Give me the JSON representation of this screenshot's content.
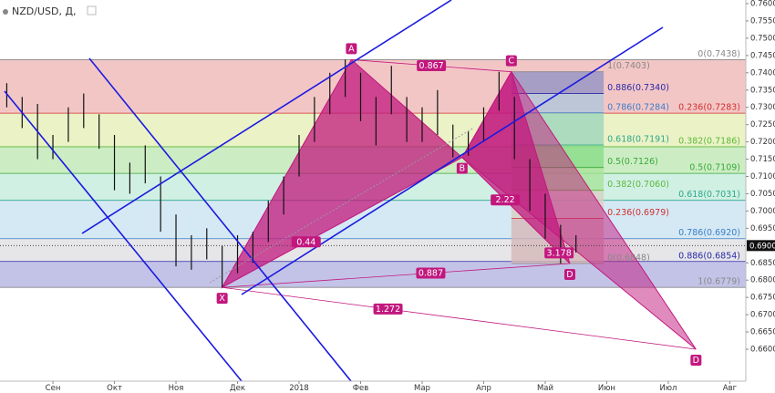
{
  "header": {
    "symbol": "NZD/USD, Д,"
  },
  "chart_data": {
    "type": "ohlc",
    "xlim": [
      -0.86,
      11.26
    ],
    "ylim": [
      0.65077,
      0.76106
    ],
    "xticks": [
      {
        "value": 0,
        "label": "Сен"
      },
      {
        "value": 1,
        "label": "Окт"
      },
      {
        "value": 2,
        "label": "Ноя"
      },
      {
        "value": 3,
        "label": "Дек"
      },
      {
        "value": 4,
        "label": "2018"
      },
      {
        "value": 5,
        "label": "Фев"
      },
      {
        "value": 6,
        "label": "Мар"
      },
      {
        "value": 7,
        "label": "Апр"
      },
      {
        "value": 8,
        "label": "Май"
      },
      {
        "value": 9,
        "label": "Июн"
      },
      {
        "value": 10,
        "label": "Июл"
      },
      {
        "value": 11,
        "label": "Авг"
      }
    ],
    "yticks": [
      {
        "value": 0.66,
        "label": "0.6600"
      },
      {
        "value": 0.665,
        "label": "0.6650"
      },
      {
        "value": 0.67,
        "label": "0.6700"
      },
      {
        "value": 0.675,
        "label": "0.6750"
      },
      {
        "value": 0.68,
        "label": "0.6800"
      },
      {
        "value": 0.685,
        "label": "0.6850"
      },
      {
        "value": 0.695,
        "label": "0.6950"
      },
      {
        "value": 0.7,
        "label": "0.7000"
      },
      {
        "value": 0.705,
        "label": "0.7050"
      },
      {
        "value": 0.71,
        "label": "0.7100"
      },
      {
        "value": 0.715,
        "label": "0.7150"
      },
      {
        "value": 0.72,
        "label": "0.7200"
      },
      {
        "value": 0.725,
        "label": "0.7250"
      },
      {
        "value": 0.73,
        "label": "0.7300"
      },
      {
        "value": 0.735,
        "label": "0.7350"
      },
      {
        "value": 0.74,
        "label": "0.7400"
      },
      {
        "value": 0.745,
        "label": "0.7450"
      },
      {
        "value": 0.75,
        "label": "0.7500"
      },
      {
        "value": 0.755,
        "label": "0.7550"
      },
      {
        "value": 0.76,
        "label": "0.7600"
      }
    ],
    "last_price": {
      "value": 0.69,
      "label": "0.6900"
    },
    "x": [
      -0.75,
      -0.5,
      -0.25,
      0,
      0.25,
      0.5,
      0.75,
      1,
      1.25,
      1.5,
      1.75,
      2,
      2.25,
      2.5,
      2.75,
      3,
      3.25,
      3.5,
      3.75,
      4,
      4.25,
      4.5,
      4.75,
      5,
      5.25,
      5.5,
      5.75,
      6,
      6.25,
      6.5,
      6.75,
      7,
      7.25,
      7.5,
      7.75,
      8,
      8.25,
      8.5
    ],
    "high": [
      0.737,
      0.733,
      0.731,
      0.722,
      0.73,
      0.734,
      0.728,
      0.722,
      0.714,
      0.719,
      0.71,
      0.699,
      0.693,
      0.695,
      0.69,
      0.693,
      0.694,
      0.703,
      0.71,
      0.722,
      0.733,
      0.74,
      0.7438,
      0.74,
      0.733,
      0.742,
      0.733,
      0.73,
      0.735,
      0.725,
      0.723,
      0.73,
      0.7403,
      0.733,
      0.715,
      0.705,
      0.696,
      0.693
    ],
    "low": [
      0.73,
      0.724,
      0.715,
      0.715,
      0.72,
      0.724,
      0.718,
      0.706,
      0.705,
      0.708,
      0.694,
      0.684,
      0.683,
      0.686,
      0.6779,
      0.682,
      0.685,
      0.691,
      0.699,
      0.71,
      0.72,
      0.728,
      0.733,
      0.726,
      0.719,
      0.728,
      0.72,
      0.72,
      0.722,
      0.7155,
      0.716,
      0.72,
      0.729,
      0.715,
      0.7,
      0.692,
      0.6848,
      0.688
    ],
    "fib_xa": [
      {
        "label": "0(0.7438)",
        "level": 0.7438,
        "color": "#888888",
        "fill": "#f0b8b8"
      },
      {
        "label": "0.236(0.7283)",
        "level": 0.7283,
        "color": "#d03030",
        "fill": "#e6efb8"
      },
      {
        "label": "0.382(0.7186)",
        "level": 0.7186,
        "color": "#5cb83c",
        "fill": "#bfe8b4"
      },
      {
        "label": "0.5(0.7109)",
        "level": 0.7109,
        "color": "#3aa83a",
        "fill": "#c4ecdc"
      },
      {
        "label": "0.618(0.7031)",
        "level": 0.7031,
        "color": "#2aa88a",
        "fill": "#cbe3f1"
      },
      {
        "label": "0.786(0.6920)",
        "level": 0.692,
        "color": "#3a7ec8",
        "fill": "#e0e0e4"
      },
      {
        "label": "0.886(0.6854)",
        "level": 0.6854,
        "color": "#2a2aa8",
        "fill": "#b4b4e2"
      },
      {
        "label": "1(0.6779)",
        "level": 0.6779,
        "color": "#888888",
        "fill": "#ffffff"
      }
    ],
    "fib_cd": [
      {
        "label": "1(0.7403)",
        "level": 0.7403,
        "color": "#888888",
        "fill": "#9494c4"
      },
      {
        "label": "0.886(0.7340)",
        "level": 0.734,
        "color": "#2a2aa8",
        "fill": "#aec6da"
      },
      {
        "label": "0.786(0.7284)",
        "level": 0.7284,
        "color": "#3a7ec8",
        "fill": "#9ed4bc"
      },
      {
        "label": "0.618(0.7191)",
        "level": 0.7191,
        "color": "#2aa88a",
        "fill": "#88dc88"
      },
      {
        "label": "0.5(0.7126)",
        "level": 0.7126,
        "color": "#3aa83a",
        "fill": "#a8e49a"
      },
      {
        "label": "0.382(0.7060)",
        "level": 0.706,
        "color": "#5cb83c",
        "fill": "#d8d0c4"
      },
      {
        "label": "0.236(0.6979)",
        "level": 0.6979,
        "color": "#d03030",
        "fill": "#d6b8b8"
      },
      {
        "label": "0(0.6848)",
        "level": 0.6848,
        "color": "#888888",
        "fill": "#ffffff"
      }
    ],
    "fib_cd_x": [
      7.45,
      8.95
    ],
    "pattern_points": [
      {
        "label": "X",
        "x": 2.75,
        "y": 0.6779
      },
      {
        "label": "A",
        "x": 4.85,
        "y": 0.7438
      },
      {
        "label": "B",
        "x": 6.65,
        "y": 0.7155
      },
      {
        "label": "C",
        "x": 7.45,
        "y": 0.7403
      },
      {
        "label": "D",
        "x": 8.4,
        "y": 0.6848
      },
      {
        "label": "D",
        "x": 10.45,
        "y": 0.66
      }
    ],
    "ratios": [
      "0.867",
      "0.44",
      "0.887",
      "1.272",
      "2.22",
      "3.178"
    ],
    "pattern_color": "#c2187e"
  }
}
